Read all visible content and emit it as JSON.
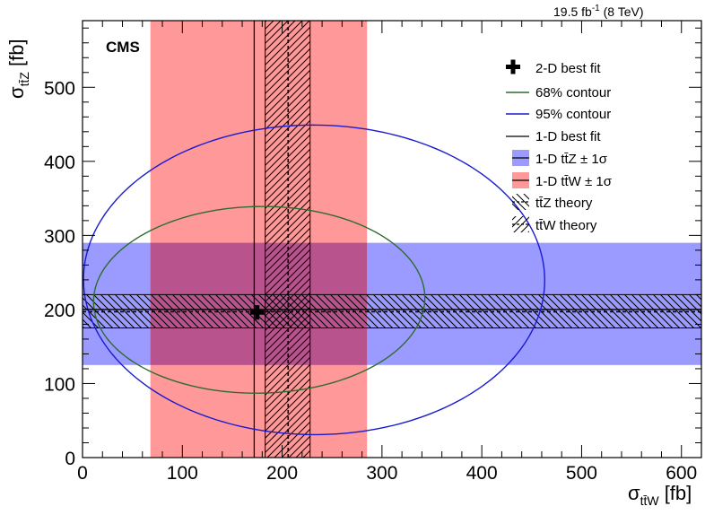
{
  "header": {
    "lumi_main": "19.5 fb",
    "lumi_exp": "-1",
    "lumi_energy": " (8 TeV)",
    "experiment": "CMS"
  },
  "axes": {
    "xlabel_sigma": "σ",
    "xlabel_sub": "tt̄W",
    "xlabel_unit": " [fb]",
    "ylabel_sigma": "σ",
    "ylabel_sub": "tt̄Z",
    "ylabel_unit": " [fb]"
  },
  "legend": {
    "best_fit_2d": "2-D best fit",
    "contour_68": "68% contour",
    "contour_95": "95% contour",
    "best_fit_1d": "1-D best fit",
    "band_ttz": "1-D tt̄Z ± 1σ",
    "band_ttw": "1-D tt̄W ± 1σ",
    "theory_ttz": "tt̄Z theory",
    "theory_ttw": "tt̄W theory"
  },
  "chart_data": {
    "type": "scatter",
    "title": "",
    "xlim": [
      0,
      620
    ],
    "ylim": [
      0,
      590
    ],
    "x_ticks": [
      0,
      100,
      200,
      300,
      400,
      500,
      600
    ],
    "y_ticks": [
      0,
      100,
      200,
      300,
      400,
      500
    ],
    "x_minor_step": 20,
    "y_minor_step": 20,
    "best_fit_2d": {
      "x": 175,
      "y": 196
    },
    "best_fit_1d": {
      "x": 172,
      "y": 200
    },
    "band_ttw_1sigma": [
      68,
      285
    ],
    "band_ttz_1sigma": [
      125,
      290
    ],
    "theory_ttw": {
      "central": 206,
      "low": 183,
      "high": 228
    },
    "theory_ttz": {
      "central": 197,
      "low": 175,
      "high": 220
    },
    "contour_68": {
      "cx": 177,
      "cy": 213,
      "rx": 166,
      "ry": 126,
      "angle_deg": 2
    },
    "contour_95": {
      "cx": 232,
      "cy": 240,
      "rx": 231,
      "ry": 209,
      "angle_deg": -1
    },
    "colors": {
      "contour_68": "#2e6b2e",
      "contour_95": "#1a1ad0",
      "band_ttz": "#9b9bff",
      "band_ttw": "#ff9999",
      "overlap": "#b8538e"
    }
  }
}
